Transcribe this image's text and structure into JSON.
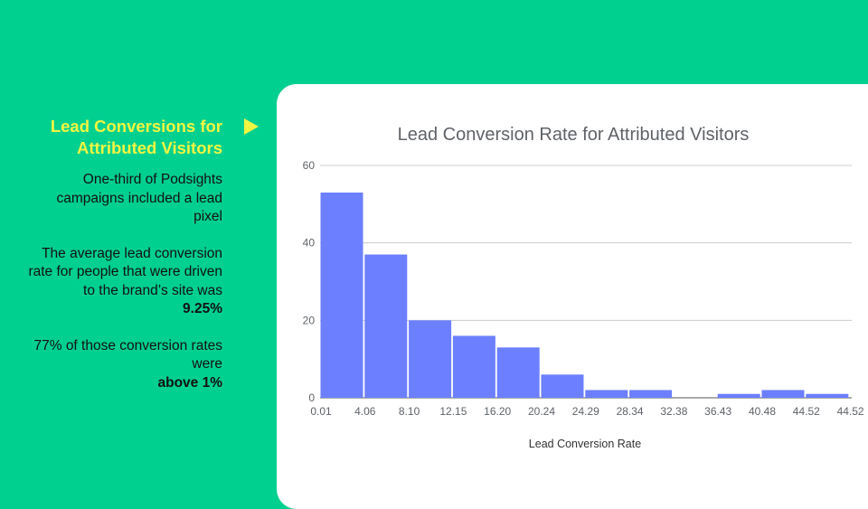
{
  "sidebar": {
    "heading": "Lead Conversions for Attributed Visitors",
    "p1": "One-third of Podsights campaigns included a lead pixel",
    "p2_text": "The average lead conversion rate for people that were driven to the brand’s site was",
    "p2_bold": "9.25%",
    "p3_text": "77% of those conversion rates were",
    "p3_bold": "above 1%"
  },
  "colors": {
    "background": "#00D08F",
    "accent": "#F2F542",
    "bar": "#6B7FFF"
  },
  "icons": {
    "arrow": "play-triangle-icon"
  },
  "chart_data": {
    "type": "bar",
    "title": "Lead Conversion Rate for Attributed Visitors",
    "xlabel": "Lead Conversion Rate",
    "ylabel": "",
    "x_ticks": [
      "0.01",
      "4.06",
      "8.10",
      "12.15",
      "16.20",
      "20.24",
      "24.29",
      "28.34",
      "32.38",
      "36.43",
      "40.48",
      "44.52",
      "44.52"
    ],
    "values": [
      53,
      37,
      20,
      16,
      13,
      6,
      2,
      2,
      0,
      1,
      2,
      1
    ],
    "y_ticks": [
      0,
      20,
      40,
      60
    ],
    "ylim": [
      0,
      60
    ],
    "grid": true
  }
}
